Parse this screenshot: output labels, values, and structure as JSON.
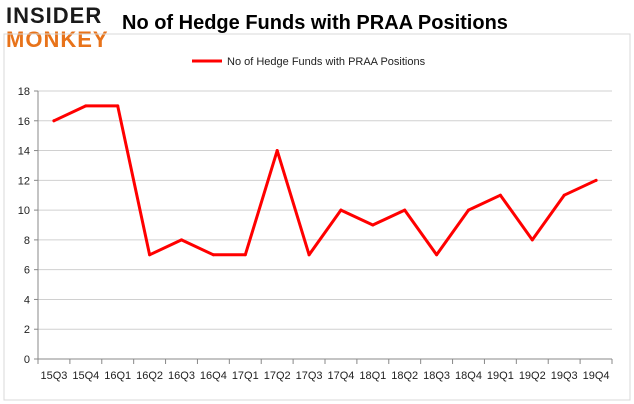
{
  "logo": {
    "line1": "INSIDER",
    "line2": "MONKEY"
  },
  "chart_data": {
    "type": "line",
    "title": "No of Hedge Funds with PRAA Positions",
    "categories": [
      "15Q3",
      "15Q4",
      "16Q1",
      "16Q2",
      "16Q3",
      "16Q4",
      "17Q1",
      "17Q2",
      "17Q3",
      "17Q4",
      "18Q1",
      "18Q2",
      "18Q3",
      "18Q4",
      "19Q1",
      "19Q2",
      "19Q3",
      "19Q4"
    ],
    "series": [
      {
        "name": "No of Hedge Funds with PRAA Positions",
        "values": [
          16,
          17,
          17,
          7,
          8,
          7,
          7,
          14,
          7,
          10,
          9,
          10,
          7,
          10,
          11,
          8,
          11,
          12
        ],
        "color": "#ff0000"
      }
    ],
    "ylim": [
      0,
      18
    ],
    "yticks": [
      0,
      2,
      4,
      6,
      8,
      10,
      12,
      14,
      16,
      18
    ],
    "grid": true,
    "legend": "top-center"
  }
}
